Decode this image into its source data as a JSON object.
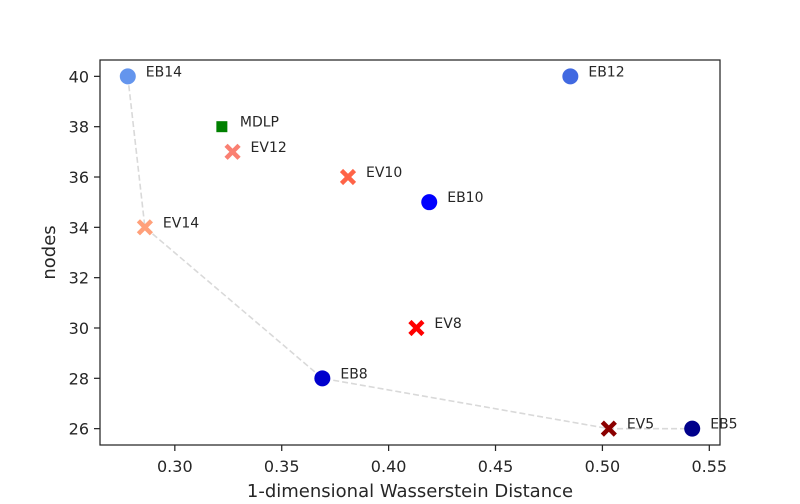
{
  "chart_data": {
    "type": "scatter",
    "title": "",
    "xlabel": "1-dimensional Wasserstein Distance",
    "ylabel": "nodes",
    "xlim": [
      0.265,
      0.555
    ],
    "ylim": [
      25.35,
      40.65
    ],
    "xticks": [
      "0.30",
      "0.35",
      "0.40",
      "0.45",
      "0.50",
      "0.55"
    ],
    "yticks": [
      "26",
      "28",
      "30",
      "32",
      "34",
      "36",
      "38",
      "40"
    ],
    "grid": false,
    "legend": "none",
    "points": [
      {
        "label": "EB14",
        "x": 0.278,
        "y": 40,
        "marker": "circle",
        "color": "#6495ED"
      },
      {
        "label": "EB12",
        "x": 0.485,
        "y": 40,
        "marker": "circle",
        "color": "#4169E1"
      },
      {
        "label": "MDLP",
        "x": 0.322,
        "y": 38,
        "marker": "square",
        "color": "#008000"
      },
      {
        "label": "EV12",
        "x": 0.327,
        "y": 37,
        "marker": "x",
        "color": "#FA8072"
      },
      {
        "label": "EV10",
        "x": 0.381,
        "y": 36,
        "marker": "x",
        "color": "#FF6347"
      },
      {
        "label": "EB10",
        "x": 0.419,
        "y": 35,
        "marker": "circle",
        "color": "#0000FF"
      },
      {
        "label": "EV14",
        "x": 0.286,
        "y": 34,
        "marker": "x",
        "color": "#FFA07A"
      },
      {
        "label": "EV8",
        "x": 0.413,
        "y": 30,
        "marker": "x",
        "color": "#FF0000"
      },
      {
        "label": "EB8",
        "x": 0.369,
        "y": 28,
        "marker": "circle",
        "color": "#0000CD"
      },
      {
        "label": "EV5",
        "x": 0.503,
        "y": 26,
        "marker": "x",
        "color": "#8B0000"
      },
      {
        "label": "EB5",
        "x": 0.542,
        "y": 26,
        "marker": "circle",
        "color": "#00008B"
      }
    ],
    "pareto_front": [
      {
        "x": 0.278,
        "y": 40
      },
      {
        "x": 0.286,
        "y": 34
      },
      {
        "x": 0.369,
        "y": 28
      },
      {
        "x": 0.503,
        "y": 26
      },
      {
        "x": 0.542,
        "y": 26
      }
    ],
    "colors": {
      "frame": "#262626",
      "pareto_line": "#d9d9d9",
      "background": "#ffffff"
    }
  }
}
